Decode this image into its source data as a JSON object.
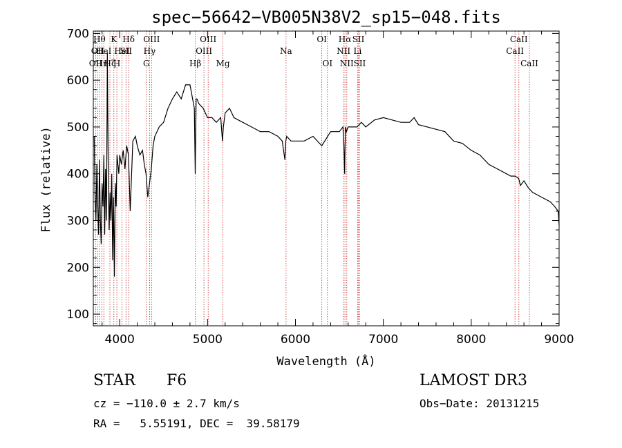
{
  "chart_data": {
    "type": "line",
    "title": "spec−56642−VB005N38V2_sp15−048.fits",
    "xlabel": "Wavelength (Å)",
    "ylabel": "Flux (relative)",
    "xlim": [
      3700,
      9000
    ],
    "ylim": [
      75,
      705
    ],
    "xticks": [
      4000,
      5000,
      6000,
      7000,
      8000,
      9000
    ],
    "yticks": [
      100,
      200,
      300,
      400,
      500,
      600,
      700
    ],
    "x_minor_step": 200,
    "y_minor_step": 20,
    "grid": false,
    "line_color": "#000000",
    "marker_color": "#cc2222",
    "series": [
      {
        "name": "flux",
        "x": [
          3710,
          3720,
          3730,
          3740,
          3750,
          3760,
          3770,
          3780,
          3790,
          3800,
          3810,
          3820,
          3830,
          3840,
          3850,
          3860,
          3870,
          3880,
          3890,
          3900,
          3910,
          3920,
          3930,
          3940,
          3950,
          3960,
          3970,
          3980,
          3990,
          4000,
          4020,
          4040,
          4060,
          4080,
          4100,
          4120,
          4150,
          4180,
          4200,
          4230,
          4260,
          4280,
          4300,
          4320,
          4340,
          4360,
          4380,
          4400,
          4450,
          4500,
          4550,
          4600,
          4650,
          4700,
          4750,
          4800,
          4830,
          4850,
          4860,
          4870,
          4880,
          4900,
          4950,
          5000,
          5050,
          5100,
          5150,
          5170,
          5180,
          5200,
          5250,
          5300,
          5400,
          5500,
          5600,
          5700,
          5800,
          5850,
          5880,
          5890,
          5900,
          5950,
          6000,
          6100,
          6200,
          6300,
          6400,
          6450,
          6500,
          6540,
          6550,
          6560,
          6565,
          6570,
          6580,
          6600,
          6650,
          6700,
          6750,
          6800,
          6900,
          7000,
          7100,
          7200,
          7300,
          7350,
          7400,
          7500,
          7600,
          7700,
          7800,
          7900,
          8000,
          8100,
          8200,
          8300,
          8400,
          8450,
          8500,
          8540,
          8560,
          8600,
          8650,
          8700,
          8800,
          8900,
          8950,
          8990,
          9000
        ],
        "y": [
          480,
          350,
          300,
          420,
          330,
          270,
          430,
          300,
          250,
          380,
          330,
          440,
          270,
          410,
          300,
          660,
          420,
          280,
          360,
          300,
          400,
          215,
          350,
          180,
          380,
          330,
          440,
          420,
          400,
          440,
          420,
          450,
          410,
          460,
          440,
          320,
          470,
          480,
          460,
          440,
          450,
          420,
          400,
          350,
          380,
          410,
          460,
          480,
          500,
          510,
          540,
          560,
          575,
          560,
          590,
          590,
          560,
          540,
          400,
          560,
          560,
          550,
          540,
          520,
          520,
          510,
          520,
          470,
          500,
          530,
          540,
          520,
          510,
          500,
          490,
          490,
          480,
          470,
          430,
          470,
          480,
          470,
          470,
          470,
          480,
          460,
          490,
          490,
          490,
          500,
          470,
          400,
          460,
          500,
          490,
          500,
          500,
          500,
          510,
          500,
          515,
          520,
          515,
          510,
          510,
          520,
          505,
          500,
          495,
          490,
          470,
          465,
          450,
          440,
          420,
          410,
          400,
          395,
          395,
          390,
          375,
          385,
          370,
          360,
          350,
          340,
          330,
          320,
          290
        ]
      }
    ],
    "lines": [
      {
        "x": 3727,
        "label": "OII",
        "row": 3
      },
      {
        "x": 3750,
        "label": "OII",
        "row": 2
      },
      {
        "x": 3770,
        "label": "Hθ",
        "row": 1
      },
      {
        "x": 3798,
        "label": "Hη",
        "row": 3
      },
      {
        "x": 3820,
        "label": "HeI",
        "row": 2
      },
      {
        "x": 3889,
        "label": "Hζ",
        "row": 3
      },
      {
        "x": 3934,
        "label": "K",
        "row": 1
      },
      {
        "x": 3968,
        "label": "H",
        "row": 3
      },
      {
        "x": 4026,
        "label": "HeI",
        "row": 2
      },
      {
        "x": 4072,
        "label": "SII",
        "row": 2
      },
      {
        "x": 4102,
        "label": "Hδ",
        "row": 1
      },
      {
        "x": 4304,
        "label": "G",
        "row": 3
      },
      {
        "x": 4340,
        "label": "Hγ",
        "row": 2
      },
      {
        "x": 4363,
        "label": "OIII",
        "row": 1
      },
      {
        "x": 4861,
        "label": "Hβ",
        "row": 3
      },
      {
        "x": 4959,
        "label": "OIII",
        "row": 2
      },
      {
        "x": 5007,
        "label": "OIII",
        "row": 1
      },
      {
        "x": 5175,
        "label": "Mg",
        "row": 3
      },
      {
        "x": 5893,
        "label": "Na",
        "row": 2
      },
      {
        "x": 6300,
        "label": "OI",
        "row": 1
      },
      {
        "x": 6364,
        "label": "OI",
        "row": 3
      },
      {
        "x": 6548,
        "label": "NII",
        "row": 2
      },
      {
        "x": 6563,
        "label": "Hα",
        "row": 1
      },
      {
        "x": 6584,
        "label": "NII",
        "row": 3
      },
      {
        "x": 6707,
        "label": "Li",
        "row": 2
      },
      {
        "x": 6716,
        "label": "SII",
        "row": 1
      },
      {
        "x": 6731,
        "label": "SII",
        "row": 3
      },
      {
        "x": 8498,
        "label": "CaII",
        "row": 2
      },
      {
        "x": 8542,
        "label": "CaII",
        "row": 1
      },
      {
        "x": 8662,
        "label": "CaII",
        "row": 3
      }
    ]
  },
  "info": {
    "object_class": "STAR",
    "subclass": "F6",
    "survey": "LAMOST DR3",
    "redshift": "cz = −110.0 ± 2.7 km/s",
    "obs_date": "Obs−Date: 20131215",
    "coords": "RA =   5.55191, DEC =  39.58179"
  }
}
